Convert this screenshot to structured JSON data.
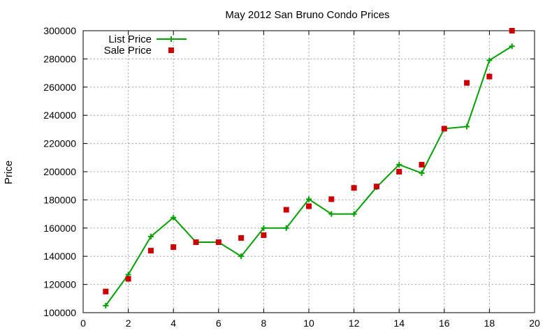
{
  "chart_data": {
    "type": "line",
    "title": "May 2012 San Bruno Condo Prices",
    "xlabel": "",
    "ylabel": "Price",
    "xlim": [
      0,
      20
    ],
    "ylim": [
      100000,
      300000
    ],
    "xticks": [
      0,
      2,
      4,
      6,
      8,
      10,
      12,
      14,
      16,
      18,
      20
    ],
    "yticks": [
      100000,
      120000,
      140000,
      160000,
      180000,
      200000,
      220000,
      240000,
      260000,
      280000,
      300000
    ],
    "grid": true,
    "legend_position": "top-left",
    "series": [
      {
        "name": "List Price",
        "style": "line-plus",
        "color": "#00a000",
        "points": [
          [
            1,
            105000
          ],
          [
            2,
            127000
          ],
          [
            3,
            154000
          ],
          [
            4,
            167500
          ],
          [
            5,
            150000
          ],
          [
            6,
            150000
          ],
          [
            7,
            140000
          ],
          [
            8,
            160000
          ],
          [
            9,
            160000
          ],
          [
            10,
            180500
          ],
          [
            11,
            170000
          ],
          [
            12,
            170000
          ],
          [
            13,
            189000
          ],
          [
            14,
            205000
          ],
          [
            15,
            199000
          ],
          [
            16,
            230500
          ],
          [
            17,
            232000
          ],
          [
            18,
            279000
          ],
          [
            19,
            289000
          ]
        ]
      },
      {
        "name": "Sale Price",
        "style": "square",
        "color": "#cc0000",
        "points": [
          [
            1,
            115000
          ],
          [
            2,
            124000
          ],
          [
            3,
            144000
          ],
          [
            4,
            146500
          ],
          [
            5,
            150000
          ],
          [
            6,
            150000
          ],
          [
            7,
            153000
          ],
          [
            8,
            155000
          ],
          [
            9,
            173000
          ],
          [
            10,
            175500
          ],
          [
            11,
            180500
          ],
          [
            12,
            188500
          ],
          [
            13,
            189500
          ],
          [
            14,
            200000
          ],
          [
            15,
            205000
          ],
          [
            16,
            230500
          ],
          [
            17,
            263000
          ],
          [
            18,
            267500
          ],
          [
            19,
            300000
          ]
        ]
      }
    ]
  }
}
